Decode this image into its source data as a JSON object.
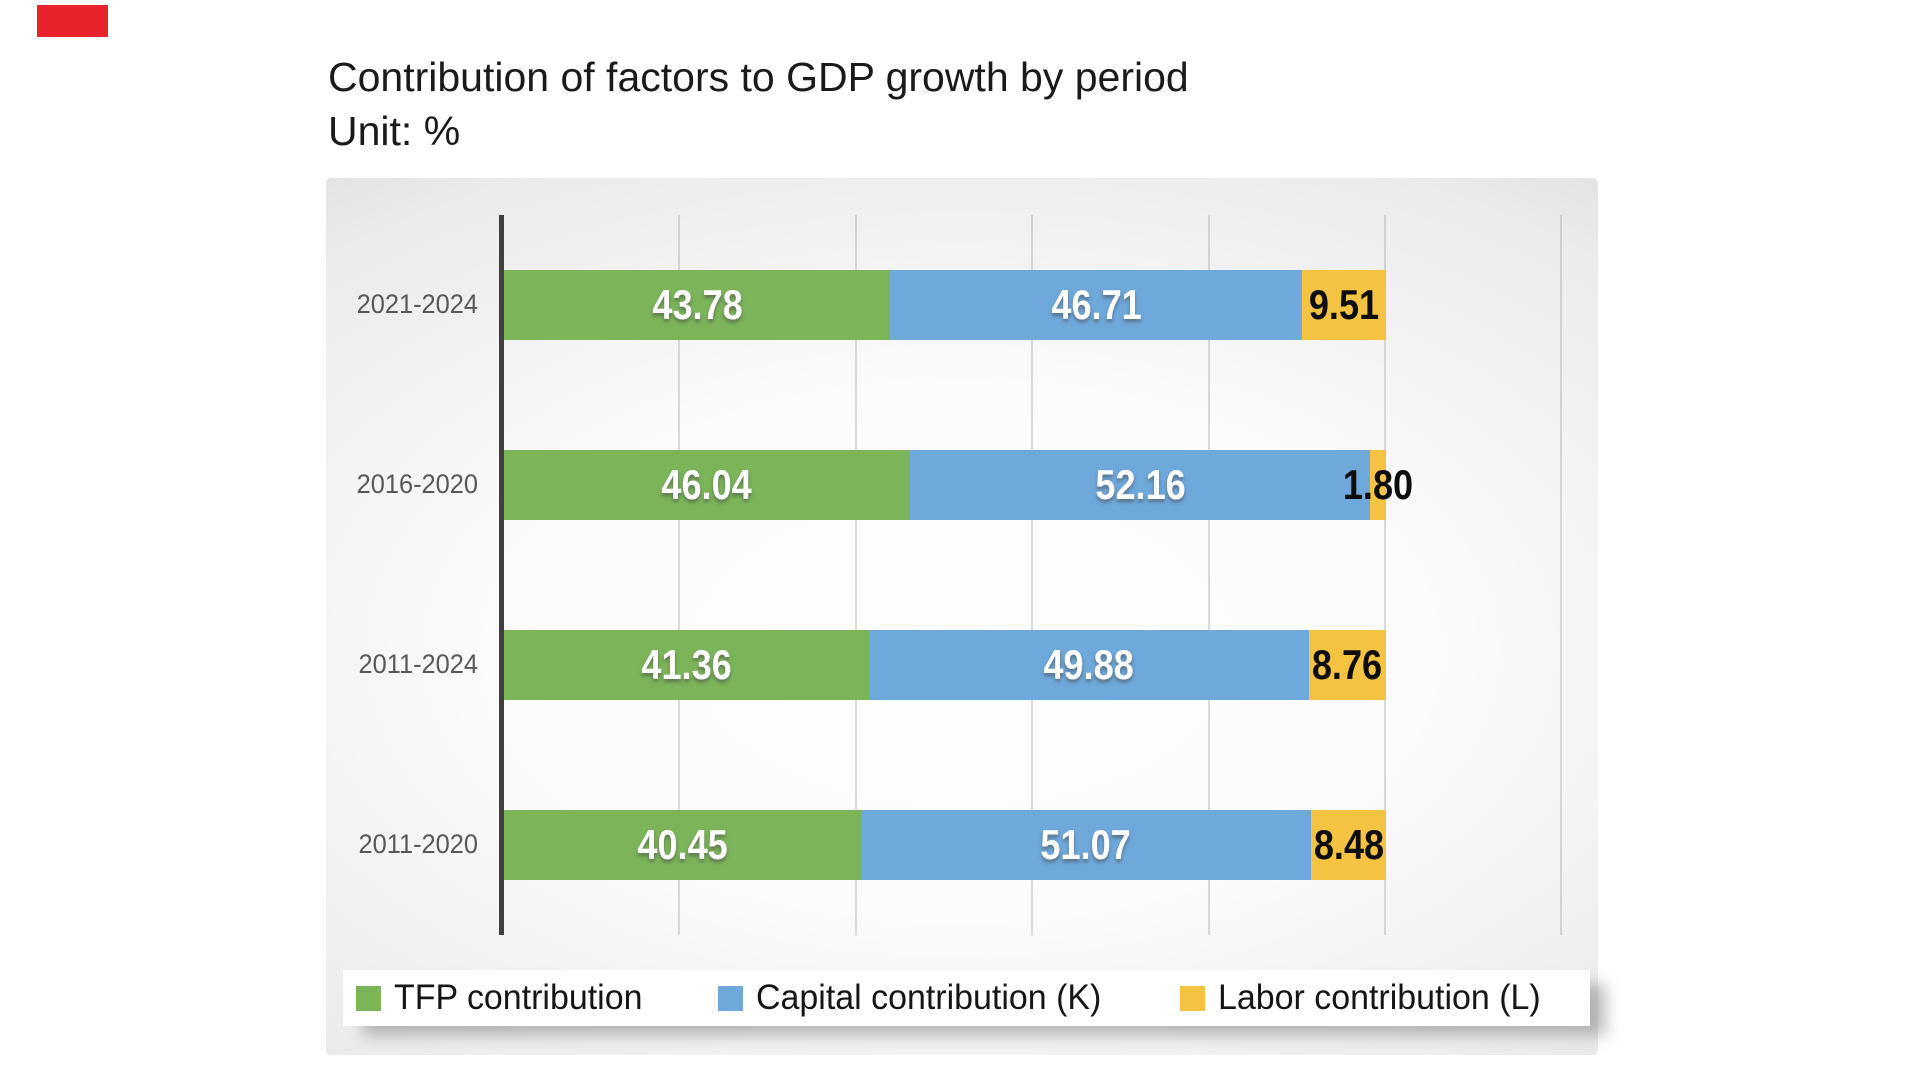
{
  "page": {
    "marker_color": "#e8232b",
    "background": "#ffffff"
  },
  "title": "Contribution of factors to GDP growth by period",
  "unit_label": "Unit: %",
  "chart_data": {
    "type": "bar",
    "orientation": "horizontal",
    "stacked": true,
    "title": "Contribution of factors to GDP growth by period",
    "unit": "%",
    "categories": [
      "2021-2024",
      "2016-2020",
      "2011-2024",
      "2011-2020"
    ],
    "series": [
      {
        "name": "TFP contribution",
        "color": "#7cb45a",
        "values": [
          43.78,
          46.04,
          41.36,
          40.45
        ]
      },
      {
        "name": "Capital contribution (K)",
        "color": "#6fa8db",
        "values": [
          46.71,
          52.16,
          49.88,
          51.07
        ]
      },
      {
        "name": "Labor contribution (L)",
        "color": "#f5c342",
        "values": [
          9.51,
          1.8,
          8.76,
          8.48
        ]
      }
    ],
    "value_labels": [
      [
        "43.78",
        "46.71",
        "9.51"
      ],
      [
        "46.04",
        "52.16",
        "1.80"
      ],
      [
        "41.36",
        "49.88",
        "8.76"
      ],
      [
        "40.45",
        "51.07",
        "8.48"
      ]
    ],
    "xlim": [
      0,
      140
    ],
    "gridline_interval": 20,
    "grid": true,
    "legend_position": "bottom",
    "axis_color": "#3f3f3f",
    "gridline_color": "#8c8c91",
    "category_label_color": "#58585a",
    "value_label_colors": {
      "on_bar": "#ffffff",
      "outside": "#0d0d0d"
    }
  }
}
